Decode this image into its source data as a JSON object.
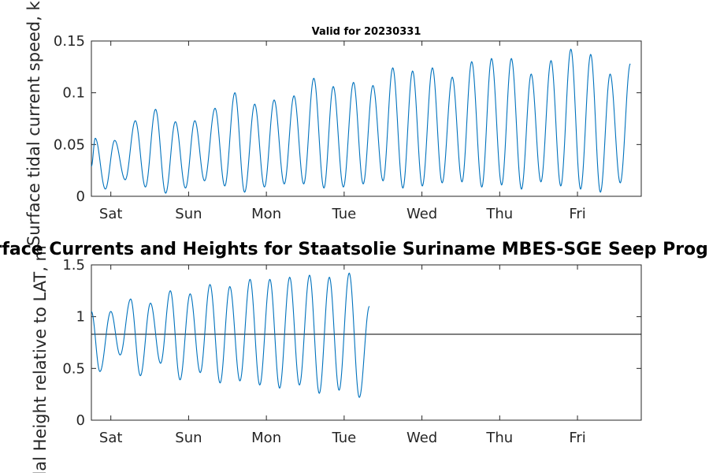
{
  "chart_data": [
    {
      "type": "line",
      "title": "Valid for 20230331",
      "ylabel": "Surface tidal current speed, kn",
      "xlabel": "",
      "day_labels": [
        "Sat",
        "Sun",
        "Mon",
        "Tue",
        "Wed",
        "Thu",
        "Fri"
      ],
      "xlim": [
        0,
        7.07
      ],
      "ylim": [
        0,
        0.15
      ],
      "yticks": [
        0,
        0.05,
        0.1,
        0.15
      ],
      "ytick_labels": [
        "0",
        "0.05",
        "0.1",
        "0.15"
      ],
      "grid": false,
      "line_color": "#0072BD",
      "series": [
        {
          "start_value": 0.029,
          "peaks": [
            [
              0.1,
              0.056
            ],
            [
              0.36,
              0.007
            ],
            [
              0.6,
              0.054
            ],
            [
              0.87,
              0.016
            ],
            [
              1.13,
              0.073
            ],
            [
              1.39,
              0.009
            ],
            [
              1.65,
              0.084
            ],
            [
              1.91,
              0.003
            ],
            [
              2.16,
              0.072
            ],
            [
              2.42,
              0.008
            ],
            [
              2.66,
              0.073
            ],
            [
              2.91,
              0.015
            ],
            [
              3.18,
              0.085
            ],
            [
              3.43,
              0.01
            ],
            [
              3.69,
              0.1
            ],
            [
              3.94,
              0.004
            ],
            [
              4.2,
              0.089
            ],
            [
              4.45,
              0.009
            ],
            [
              4.7,
              0.093
            ],
            [
              4.96,
              0.012
            ],
            [
              5.21,
              0.097
            ],
            [
              5.46,
              0.012
            ],
            [
              5.72,
              0.114
            ],
            [
              5.98,
              0.008
            ],
            [
              6.22,
              0.106
            ],
            [
              6.48,
              0.009
            ],
            [
              6.74,
              0.11
            ],
            [
              6.99,
              0.012
            ],
            [
              7.24,
              0.107
            ],
            [
              7.5,
              0.015
            ],
            [
              7.75,
              0.124
            ],
            [
              8.01,
              0.008
            ],
            [
              8.26,
              0.121
            ],
            [
              8.51,
              0.01
            ],
            [
              8.77,
              0.124
            ],
            [
              9.02,
              0.013
            ],
            [
              9.28,
              0.115
            ],
            [
              9.53,
              0.014
            ],
            [
              9.78,
              0.13
            ],
            [
              10.04,
              0.009
            ],
            [
              10.29,
              0.133
            ],
            [
              10.55,
              0.011
            ],
            [
              10.8,
              0.133
            ],
            [
              11.06,
              0.007
            ],
            [
              11.31,
              0.118
            ],
            [
              11.56,
              0.014
            ],
            [
              11.82,
              0.131
            ],
            [
              12.07,
              0.01
            ],
            [
              12.33,
              0.142
            ],
            [
              12.58,
              0.007
            ],
            [
              12.84,
              0.137
            ],
            [
              13.09,
              0.004
            ],
            [
              13.34,
              0.118
            ],
            [
              13.6,
              0.013
            ],
            [
              13.86,
              0.128
            ]
          ]
        }
      ]
    },
    {
      "type": "line",
      "title": "Surface Currents and Heights for Staatsolie Suriname MBES-SGE Seep Program a",
      "ylabel": "Tidal Height relative to LAT, m",
      "xlabel": "",
      "day_labels": [
        "Sat",
        "Sun",
        "Mon",
        "Tue",
        "Wed",
        "Thu",
        "Fri"
      ],
      "xlim": [
        0,
        7.07
      ],
      "ylim": [
        0,
        1.5
      ],
      "yticks": [
        0,
        0.5,
        1,
        1.5
      ],
      "ytick_labels": [
        "0",
        "0.5",
        "1",
        "1.5"
      ],
      "grid": false,
      "line_color": "#0072BD",
      "reference_line": {
        "value": 0.83,
        "color": "#000000"
      },
      "series": [
        {
          "start_value": 1.05,
          "peaks": [
            [
              0.22,
              0.47
            ],
            [
              0.5,
              1.05
            ],
            [
              0.74,
              0.63
            ],
            [
              1.01,
              1.17
            ],
            [
              1.26,
              0.43
            ],
            [
              1.52,
              1.13
            ],
            [
              1.78,
              0.55
            ],
            [
              2.03,
              1.25
            ],
            [
              2.28,
              0.39
            ],
            [
              2.54,
              1.22
            ],
            [
              2.8,
              0.46
            ],
            [
              3.05,
              1.31
            ],
            [
              3.31,
              0.36
            ],
            [
              3.56,
              1.29
            ],
            [
              3.82,
              0.38
            ],
            [
              4.08,
              1.36
            ],
            [
              4.33,
              0.34
            ],
            [
              4.59,
              1.36
            ],
            [
              4.84,
              0.31
            ],
            [
              5.1,
              1.38
            ],
            [
              5.35,
              0.34
            ],
            [
              5.61,
              1.4
            ],
            [
              5.86,
              0.26
            ],
            [
              6.12,
              1.38
            ],
            [
              6.37,
              0.29
            ],
            [
              6.63,
              1.42
            ],
            [
              6.89,
              0.22
            ],
            [
              7.15,
              1.1
            ]
          ]
        }
      ]
    }
  ]
}
